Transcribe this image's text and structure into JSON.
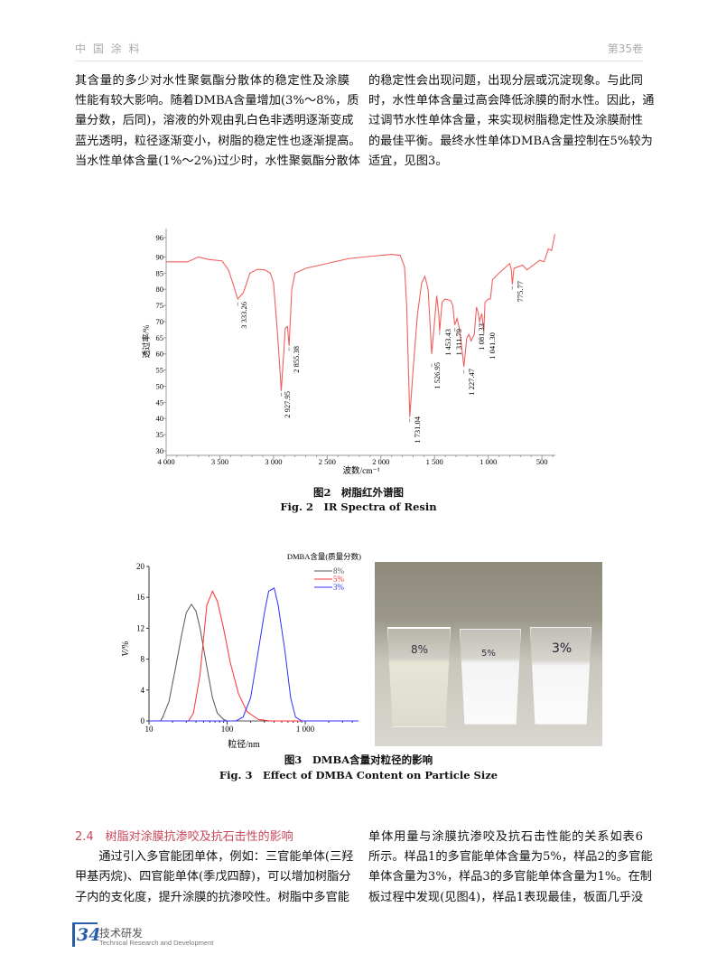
{
  "header": {
    "journal": "中 国 涂 料",
    "volume": "第35卷"
  },
  "col1_top": [
    "其含量的多少对水性聚氨酯分散体的稳定性及涂膜",
    "性能有较大影响。随着DMBA含量增加(3%～8%，质",
    "量分数，后同)，溶液的外观由乳白色非透明逐渐变成",
    "蓝光透明，粒径逐渐变小，树脂的稳定性也逐渐提高。",
    "当水性单体含量(1%～2%)过少时，水性聚氨酯分散体"
  ],
  "col2_top": [
    "的稳定性会出现问题，出现分层或沉淀现象。与此同",
    "时，水性单体含量过高会降低涂膜的耐水性。因此，通",
    "过调节水性单体含量，来实现树脂稳定性及涂膜耐性",
    "的最佳平衡。最终水性单体DMBA含量控制在5%较为",
    "适宜，见图3。"
  ],
  "fig2": {
    "caption_cn": "图2　树脂红外谱图",
    "caption_en": "Fig. 2　IR Spectra of Resin"
  },
  "fig3": {
    "caption_cn": "图3　DMBA含量对粒径的影响",
    "caption_en": "Fig. 3　Effect of DMBA Content on Particle Size",
    "photo_labels": [
      "8%",
      "5%",
      "3%"
    ]
  },
  "section": {
    "title": "2.4　树脂对涂膜抗渗咬及抗石击性的影响"
  },
  "col1_bottom": [
    "　　通过引入多官能团单体，例如：三官能单体(三羟",
    "甲基丙烷)、四官能单体(季戊四醇)，可以增加树脂分",
    "子内的支化度，提升涂膜的抗渗咬性。树脂中多官能"
  ],
  "col2_bottom": [
    "单体用量与涂膜抗渗咬及抗石击性能的关系如表6",
    "所示。样品1的多官能单体含量为5%，样品2的多官能",
    "单体含量为3%，样品3的多官能单体含量为1%。在制",
    "板过程中发现(见图4)，样品1表现最佳，板面几乎没"
  ],
  "footer": {
    "page": "34",
    "section_cn": "技术研发",
    "section_en": "Technical Research and Development"
  },
  "chart_data": [
    {
      "type": "line",
      "xlabel": "波数/cm⁻¹",
      "ylabel": "透过率/%",
      "xlim": [
        4000,
        375
      ],
      "ylim": [
        28.6,
        98.8
      ],
      "xticks": [
        "4 000",
        "3 500",
        "3 000",
        "2 500",
        "2 000",
        "1 500",
        "1 000",
        "500"
      ],
      "xtick_values": [
        4000,
        3500,
        3000,
        2500,
        2000,
        1500,
        1000,
        500
      ],
      "yticks": [
        30,
        35,
        40,
        45,
        50,
        55,
        60,
        65,
        70,
        75,
        80,
        85,
        90,
        96
      ],
      "color": "#f06060",
      "series": [
        {
          "x": [
            4000,
            3800,
            3700,
            3600,
            3480,
            3420,
            3380,
            3333,
            3280,
            3220,
            3150,
            3080,
            3030,
            3000,
            2960,
            2928,
            2890,
            2870,
            2855,
            2830,
            2800,
            2700,
            2500,
            2300,
            2100,
            1900,
            1820,
            1780,
            1760,
            1731,
            1700,
            1660,
            1620,
            1590,
            1560,
            1527,
            1500,
            1480,
            1460,
            1453,
            1430,
            1400,
            1350,
            1330,
            1312,
            1290,
            1270,
            1240,
            1227,
            1200,
            1180,
            1160,
            1130,
            1110,
            1095,
            1081,
            1060,
            1041,
            1030,
            1000,
            980,
            960,
            900,
            850,
            800,
            785,
            776,
            760,
            720,
            680,
            640,
            580,
            520,
            480,
            440,
            410,
            380
          ],
          "y": [
            88.5,
            88.5,
            90,
            89.2,
            88.8,
            86,
            82,
            77,
            79,
            85,
            86.2,
            86,
            85,
            82,
            65,
            48.5,
            68,
            68.5,
            62.5,
            80,
            85,
            86.5,
            88,
            89.5,
            90.2,
            90.8,
            90.5,
            87,
            75,
            40.5,
            55,
            72,
            82,
            84,
            80,
            60,
            70,
            78,
            72,
            67,
            76,
            77,
            76.5,
            75,
            69,
            71,
            68,
            60,
            56,
            65,
            66,
            64,
            66,
            74.5,
            73,
            70,
            72.5,
            67,
            76,
            77,
            77,
            83,
            85,
            86.5,
            88,
            86,
            81.5,
            86.5,
            87,
            87.5,
            86,
            87.5,
            89,
            88.5,
            92.5,
            92,
            97
          ]
        }
      ],
      "annotations": [
        {
          "x": 3333.26,
          "y": 76,
          "label": "3 333.26"
        },
        {
          "x": 2927.95,
          "y": 48,
          "label": "2 927.95"
        },
        {
          "x": 2855.38,
          "y": 62,
          "label": "2 855.38"
        },
        {
          "x": 1731.04,
          "y": 40,
          "label": "1 731.04"
        },
        {
          "x": 1526.95,
          "y": 57,
          "label": "1 526.95"
        },
        {
          "x": 1453.43,
          "y": 67,
          "label": "1 453.43"
        },
        {
          "x": 1311.79,
          "y": 68,
          "label": "1 311.79"
        },
        {
          "x": 1227.47,
          "y": 55,
          "label": "1 227.47"
        },
        {
          "x": 1081.33,
          "y": 70,
          "label": "1 081.33"
        },
        {
          "x": 1041.3,
          "y": 67,
          "label": "1 041.30"
        },
        {
          "x": 775.77,
          "y": 81,
          "label": "775.77"
        }
      ]
    },
    {
      "type": "line",
      "xlabel": "粒径/nm",
      "ylabel": "V/%",
      "xscale": "log",
      "xlim": [
        10,
        4800
      ],
      "ylim": [
        0,
        20
      ],
      "xticks": [
        "10",
        "100",
        "1 000"
      ],
      "xtick_values": [
        10,
        100,
        1000
      ],
      "yticks": [
        0,
        4,
        8,
        12,
        16,
        20
      ],
      "legend_title": "DMBA含量(质量分数)",
      "legend": "top-right",
      "series": [
        {
          "name": "8%",
          "color": "#555555",
          "x": [
            10,
            14,
            15,
            18,
            22,
            26,
            30,
            35,
            40,
            45,
            55,
            65,
            75,
            90,
            100,
            4800
          ],
          "y": [
            0,
            0,
            0.5,
            2.5,
            7,
            11,
            14,
            15.1,
            14.2,
            12,
            7,
            3,
            1,
            0.2,
            0,
            0
          ]
        },
        {
          "name": "5%",
          "color": "#ff3030",
          "x": [
            10,
            32,
            37,
            45,
            55,
            65,
            75,
            90,
            110,
            140,
            180,
            250,
            350,
            4800
          ],
          "y": [
            0,
            0,
            1,
            6,
            15,
            16.8,
            15.5,
            12,
            7.5,
            3.5,
            1.2,
            0.2,
            0,
            0
          ]
        },
        {
          "name": "3%",
          "color": "#3030ff",
          "x": [
            10,
            130,
            160,
            200,
            250,
            300,
            340,
            400,
            450,
            550,
            650,
            750,
            900,
            4800
          ],
          "y": [
            0,
            0,
            0.5,
            3,
            9,
            14,
            16.8,
            17.2,
            15,
            9,
            3,
            0.5,
            0,
            0
          ]
        }
      ]
    }
  ]
}
